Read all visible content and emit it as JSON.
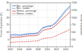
{
  "chart_data": {
    "type": "line",
    "x": [
      2002,
      2003,
      2004,
      2005,
      2006,
      2007,
      2008,
      2009,
      2010,
      2011,
      2012,
      2013,
      2014,
      2015
    ],
    "xlim": [
      2002,
      2015
    ],
    "xticks": [
      2002,
      2004,
      2006,
      2008,
      2010,
      2012,
      2014
    ],
    "ylim": [
      0,
      30
    ],
    "yticks": [
      0,
      5,
      10,
      15,
      20,
      25,
      30
    ],
    "y2lim": [
      0,
      1500
    ],
    "y2ticks": [
      0,
      250,
      500,
      750,
      1000,
      1250,
      1500
    ],
    "y_label": "Percent of graduates (%)",
    "y2_label": "Number of graduates",
    "grid": true,
    "legend": "upper left",
    "series": [
      {
        "name": "Men - percentage",
        "color": "#3b6fc4",
        "line_style": "solid",
        "values": [
          8,
          8.5,
          8,
          8.5,
          9,
          9,
          9.5,
          13,
          14,
          14.5,
          17,
          21,
          25,
          28
        ]
      },
      {
        "name": "Men - number",
        "color": "#3b6fc4",
        "line_style": "dashed",
        "axis": "y2",
        "values": [
          350,
          380,
          370,
          400,
          420,
          430,
          460,
          620,
          680,
          700,
          820,
          1000,
          1200,
          1350
        ]
      },
      {
        "name": "Women - percentage",
        "color": "#d0312d",
        "line_style": "solid",
        "values": [
          6,
          6.5,
          6.5,
          7,
          7.5,
          7.5,
          8,
          11,
          12,
          12.5,
          15,
          18,
          21,
          24
        ]
      },
      {
        "name": "Women - number",
        "color": "#d0312d",
        "line_style": "dashed",
        "axis": "y2",
        "values": [
          150,
          160,
          170,
          170,
          180,
          190,
          200,
          280,
          300,
          310,
          380,
          450,
          520,
          600
        ]
      }
    ]
  }
}
